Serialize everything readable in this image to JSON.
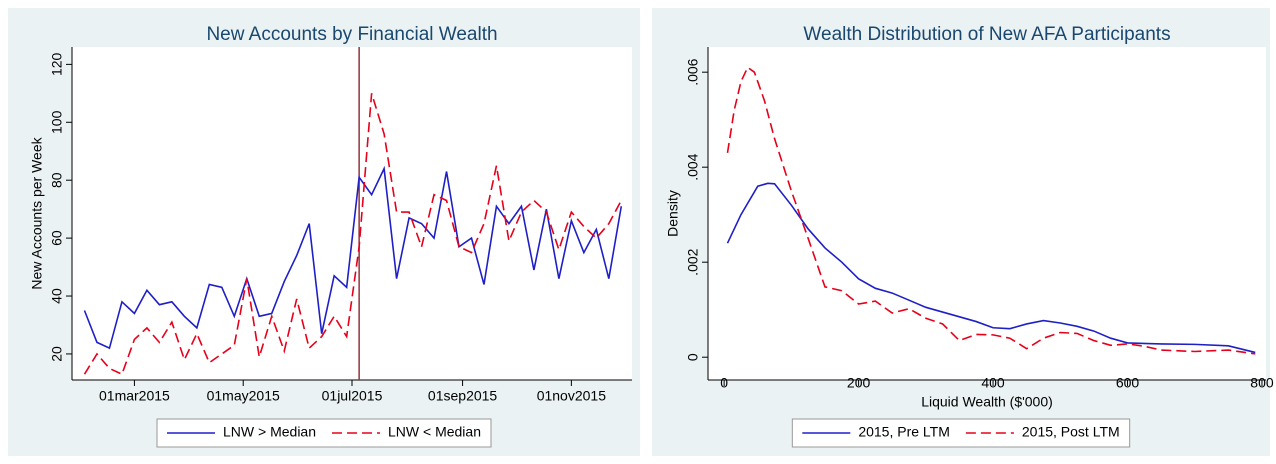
{
  "chart_data": [
    {
      "type": "line",
      "title": "New Accounts by Financial Wealth",
      "ylabel": "New Accounts per Week",
      "x": [
        "2015-02-01",
        "2015-02-08",
        "2015-02-15",
        "2015-02-22",
        "2015-03-01",
        "2015-03-08",
        "2015-03-15",
        "2015-03-22",
        "2015-03-29",
        "2015-04-05",
        "2015-04-12",
        "2015-04-19",
        "2015-04-26",
        "2015-05-03",
        "2015-05-10",
        "2015-05-17",
        "2015-05-24",
        "2015-05-31",
        "2015-06-07",
        "2015-06-14",
        "2015-06-21",
        "2015-06-28",
        "2015-07-05",
        "2015-07-12",
        "2015-07-19",
        "2015-07-26",
        "2015-08-02",
        "2015-08-09",
        "2015-08-16",
        "2015-08-23",
        "2015-08-30",
        "2015-09-06",
        "2015-09-13",
        "2015-09-20",
        "2015-09-27",
        "2015-10-04",
        "2015-10-11",
        "2015-10-18",
        "2015-10-25",
        "2015-11-01",
        "2015-11-08",
        "2015-11-15",
        "2015-11-22",
        "2015-11-29"
      ],
      "series": [
        {
          "name": "LNW > Median",
          "color": "#1f1fc8",
          "dash": "none",
          "values": [
            35,
            24,
            22,
            38,
            34,
            42,
            37,
            38,
            33,
            29,
            44,
            43,
            33,
            46,
            33,
            34,
            45,
            54,
            65,
            27,
            47,
            43,
            81,
            75,
            84,
            46,
            67,
            65,
            60,
            83,
            57,
            60,
            44,
            71,
            65,
            71,
            49,
            70,
            46,
            66,
            55,
            63,
            46,
            71
          ]
        },
        {
          "name": "LNW < Median",
          "color": "#e8001a",
          "dash": "10 5",
          "values": [
            13,
            20,
            15,
            13,
            25,
            29,
            24,
            31,
            18,
            27,
            17,
            20,
            23,
            46,
            19,
            33,
            21,
            39,
            22,
            26,
            33,
            26,
            57,
            110,
            96,
            69,
            69,
            57,
            75,
            73,
            57,
            55,
            65,
            85,
            59,
            69,
            73,
            69,
            56,
            69,
            64,
            60,
            65,
            73
          ]
        }
      ],
      "xline": "2015-07-05",
      "xline_color": "#90353b",
      "xlim": [
        "2015-01-25",
        "2015-12-05"
      ],
      "xticks": [
        {
          "value": "2015-03-01",
          "label": "01mar2015"
        },
        {
          "value": "2015-05-01",
          "label": "01may2015"
        },
        {
          "value": "2015-07-01",
          "label": "01jul2015"
        },
        {
          "value": "2015-09-01",
          "label": "01sep2015"
        },
        {
          "value": "2015-11-01",
          "label": "01nov2015"
        }
      ],
      "ylim": [
        11,
        126
      ],
      "yticks": [
        20,
        40,
        60,
        80,
        100,
        120
      ],
      "grid": false,
      "legend": "bottom"
    },
    {
      "type": "line",
      "title": "Wealth Distribution of New AFA Participants",
      "xlabel": "Liquid Wealth ($'000)",
      "ylabel": "Density",
      "series": [
        {
          "name": "2015, Pre LTM",
          "color": "#1f1fc8",
          "dash": "none",
          "x": [
            5,
            25,
            50,
            65,
            75,
            100,
            125,
            150,
            175,
            200,
            225,
            250,
            275,
            300,
            325,
            350,
            375,
            400,
            425,
            450,
            475,
            500,
            525,
            550,
            575,
            600,
            650,
            700,
            750,
            790
          ],
          "values": [
            0.0024,
            0.003,
            0.0036,
            0.00366,
            0.00365,
            0.0032,
            0.0027,
            0.0023,
            0.002,
            0.00165,
            0.00145,
            0.00135,
            0.0012,
            0.00105,
            0.00095,
            0.00085,
            0.00075,
            0.00062,
            0.0006,
            0.0007,
            0.00077,
            0.00072,
            0.00065,
            0.00055,
            0.0004,
            0.0003,
            0.00028,
            0.00027,
            0.00024,
            0.0001
          ]
        },
        {
          "name": "2015, Post LTM",
          "color": "#e8001a",
          "dash": "10 5",
          "x": [
            5,
            15,
            25,
            35,
            45,
            60,
            75,
            100,
            125,
            150,
            175,
            200,
            225,
            250,
            275,
            300,
            325,
            350,
            375,
            400,
            425,
            450,
            475,
            500,
            525,
            550,
            575,
            600,
            625,
            650,
            700,
            750,
            790
          ],
          "values": [
            0.0043,
            0.0052,
            0.0058,
            0.0061,
            0.006,
            0.0054,
            0.0046,
            0.0035,
            0.0025,
            0.00148,
            0.0014,
            0.00112,
            0.00118,
            0.00093,
            0.00102,
            0.00082,
            0.0007,
            0.00035,
            0.00048,
            0.00047,
            0.0004,
            0.00018,
            0.0004,
            0.00052,
            0.0005,
            0.00035,
            0.00025,
            0.00028,
            0.00023,
            0.00015,
            0.00012,
            0.00015,
            7e-05
          ]
        }
      ],
      "xlim": [
        -24,
        806
      ],
      "xticks": [
        0,
        200,
        400,
        600,
        800
      ],
      "ylim": [
        -0.00048,
        0.00653
      ],
      "yticks": [
        0,
        {
          "value": 0.002,
          "label": ".002"
        },
        {
          "value": 0.004,
          "label": ".004"
        },
        {
          "value": 0.006,
          "label": ".006"
        }
      ],
      "grid": false,
      "legend": "bottom"
    }
  ]
}
